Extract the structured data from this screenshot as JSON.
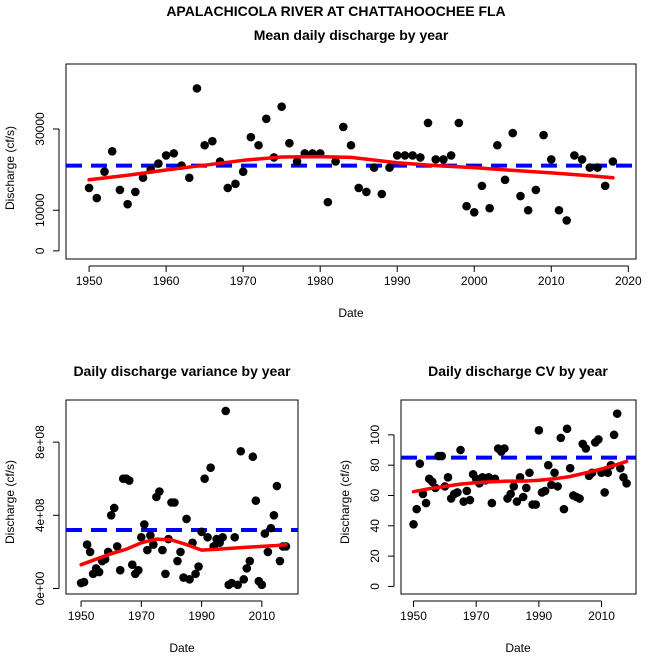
{
  "page_title": "APALACHICOLA RIVER AT CHATTAHOOCHEE FLA",
  "chart_data": [
    {
      "id": "mean",
      "type": "scatter",
      "title": "Mean daily discharge by year",
      "xlabel": "Date",
      "ylabel": "Discharge (cf/s)",
      "xlim": [
        1947,
        2021
      ],
      "ylim": [
        -2000,
        46000
      ],
      "xticks": [
        1950,
        1960,
        1970,
        1980,
        1990,
        2000,
        2010,
        2020
      ],
      "yticks": [
        0,
        10000,
        30000
      ],
      "ytick_labels": [
        "0",
        "10000",
        "30000"
      ],
      "x": [
        1950,
        1951,
        1952,
        1953,
        1954,
        1955,
        1956,
        1957,
        1958,
        1959,
        1960,
        1961,
        1962,
        1963,
        1964,
        1965,
        1966,
        1967,
        1968,
        1969,
        1970,
        1971,
        1972,
        1973,
        1974,
        1975,
        1976,
        1977,
        1978,
        1979,
        1980,
        1981,
        1982,
        1983,
        1984,
        1985,
        1986,
        1987,
        1988,
        1989,
        1990,
        1991,
        1992,
        1993,
        1994,
        1995,
        1996,
        1997,
        1998,
        1999,
        2000,
        2001,
        2002,
        2003,
        2004,
        2005,
        2006,
        2007,
        2008,
        2009,
        2010,
        2011,
        2012,
        2013,
        2014,
        2015,
        2016,
        2017,
        2018
      ],
      "y": [
        15500,
        13000,
        19500,
        24500,
        15000,
        11500,
        14500,
        18000,
        20000,
        21500,
        23500,
        24000,
        21000,
        18000,
        40000,
        26000,
        27000,
        22000,
        15500,
        16500,
        19500,
        28000,
        26000,
        32500,
        23000,
        35500,
        26500,
        22000,
        24000,
        24000,
        24000,
        12000,
        22000,
        30500,
        26000,
        15500,
        14500,
        20500,
        14000,
        20500,
        23500,
        23500,
        23500,
        23000,
        31500,
        22500,
        22500,
        23500,
        31500,
        11000,
        9500,
        16000,
        10500,
        26000,
        17500,
        29000,
        13500,
        10000,
        15000,
        28500,
        22500,
        10000,
        7500,
        23500,
        22500,
        20500,
        20500,
        16000,
        22000
      ],
      "trend": {
        "x": [
          1950,
          1955,
          1960,
          1965,
          1970,
          1975,
          1980,
          1984,
          1990,
          1995,
          2000,
          2005,
          2010,
          2015,
          2018
        ],
        "y": [
          17500,
          18600,
          19900,
          21100,
          22300,
          23100,
          23200,
          23000,
          21700,
          21000,
          20500,
          19800,
          19200,
          18500,
          18000
        ]
      },
      "reference": 21000,
      "colors": {
        "points": "#000000",
        "trend": "#ff0000",
        "reference": "#0000ff"
      }
    },
    {
      "id": "variance",
      "type": "scatter",
      "title": "Daily discharge variance by year",
      "xlabel": "Date",
      "ylabel": "Discharge (cf/s)",
      "xlim": [
        1945,
        2022
      ],
      "ylim": [
        -30000000.0,
        1030000000.0
      ],
      "xticks": [
        1950,
        1970,
        1990,
        2010
      ],
      "yticks": [
        0,
        400000000,
        800000000
      ],
      "ytick_labels": [
        "0e+00",
        "4e+08",
        "8e+08"
      ],
      "x": [
        1950,
        1951,
        1952,
        1953,
        1954,
        1955,
        1956,
        1957,
        1958,
        1959,
        1960,
        1961,
        1962,
        1963,
        1964,
        1965,
        1966,
        1967,
        1968,
        1969,
        1970,
        1971,
        1972,
        1973,
        1974,
        1975,
        1976,
        1977,
        1978,
        1979,
        1980,
        1981,
        1982,
        1983,
        1984,
        1985,
        1986,
        1987,
        1988,
        1989,
        1990,
        1991,
        1992,
        1993,
        1994,
        1995,
        1996,
        1997,
        1998,
        1999,
        2000,
        2001,
        2002,
        2003,
        2004,
        2005,
        2006,
        2007,
        2008,
        2009,
        2010,
        2011,
        2012,
        2013,
        2014,
        2015,
        2016,
        2017,
        2018
      ],
      "y": [
        30000000,
        35000000,
        240000000,
        200000000,
        80000000,
        110000000,
        90000000,
        150000000,
        160000000,
        200000000,
        400000000,
        440000000,
        230000000,
        100000000,
        600000000,
        600000000,
        590000000,
        130000000,
        80000000,
        100000000,
        280000000,
        350000000,
        210000000,
        290000000,
        240000000,
        500000000,
        530000000,
        210000000,
        80000000,
        270000000,
        470000000,
        470000000,
        150000000,
        200000000,
        60000000,
        380000000,
        50000000,
        250000000,
        80000000,
        120000000,
        310000000,
        600000000,
        280000000,
        660000000,
        230000000,
        270000000,
        250000000,
        280000000,
        970000000,
        20000000,
        30000000,
        280000000,
        20000000,
        750000000,
        50000000,
        110000000,
        150000000,
        720000000,
        480000000,
        40000000,
        20000000,
        300000000,
        200000000,
        330000000,
        400000000,
        560000000,
        150000000,
        230000000,
        230000000
      ],
      "trend": {
        "x": [
          1950,
          1955,
          1960,
          1965,
          1970,
          1975,
          1980,
          1985,
          1990,
          1995,
          2000,
          2005,
          2010,
          2015,
          2018
        ],
        "y": [
          130000000,
          160000000,
          190000000,
          215000000,
          250000000,
          270000000,
          265000000,
          240000000,
          210000000,
          215000000,
          220000000,
          225000000,
          230000000,
          235000000,
          240000000
        ]
      },
      "reference": 320000000,
      "colors": {
        "points": "#000000",
        "trend": "#ff0000",
        "reference": "#0000ff"
      }
    },
    {
      "id": "cv",
      "type": "scatter",
      "title": "Daily discharge CV by year",
      "xlabel": "Date",
      "ylabel": "Discharge (cf/s)",
      "xlim": [
        1946,
        2021
      ],
      "ylim": [
        -5,
        123
      ],
      "xticks": [
        1950,
        1970,
        1990,
        2010
      ],
      "yticks": [
        0,
        20,
        40,
        60,
        80,
        100
      ],
      "ytick_labels": [
        "0",
        "20",
        "40",
        "60",
        "80",
        "100"
      ],
      "x": [
        1950,
        1951,
        1952,
        1953,
        1954,
        1955,
        1956,
        1957,
        1958,
        1959,
        1960,
        1961,
        1962,
        1963,
        1964,
        1965,
        1966,
        1967,
        1968,
        1969,
        1970,
        1971,
        1972,
        1973,
        1974,
        1975,
        1976,
        1977,
        1978,
        1979,
        1980,
        1981,
        1982,
        1983,
        1984,
        1985,
        1986,
        1987,
        1988,
        1989,
        1990,
        1991,
        1992,
        1993,
        1994,
        1995,
        1996,
        1997,
        1998,
        1999,
        2000,
        2001,
        2002,
        2003,
        2004,
        2005,
        2006,
        2007,
        2008,
        2009,
        2010,
        2011,
        2012,
        2013,
        2014,
        2015,
        2016,
        2017,
        2018
      ],
      "y": [
        41,
        51,
        81,
        61,
        55,
        71,
        69,
        65,
        86,
        86,
        66,
        72,
        58,
        61,
        62,
        90,
        56,
        63,
        57,
        74,
        71,
        68,
        72,
        70,
        72,
        55,
        71,
        91,
        89,
        91,
        58,
        61,
        66,
        56,
        72,
        59,
        65,
        75,
        54,
        54,
        103,
        62,
        63,
        80,
        67,
        75,
        66,
        98,
        51,
        104,
        78,
        60,
        59,
        58,
        94,
        91,
        73,
        75,
        95,
        97,
        75,
        62,
        75,
        80,
        100,
        114,
        78,
        72,
        68
      ],
      "trend": {
        "x": [
          1950,
          1955,
          1960,
          1965,
          1970,
          1975,
          1980,
          1985,
          1990,
          1995,
          2000,
          2005,
          2010,
          2015,
          2018
        ],
        "y": [
          62.5,
          64.5,
          66,
          67.5,
          68.5,
          69,
          69.5,
          69.5,
          70,
          71,
          72.5,
          75,
          77.5,
          80.5,
          82.5
        ]
      },
      "reference": 85,
      "colors": {
        "points": "#000000",
        "trend": "#ff0000",
        "reference": "#0000ff"
      }
    }
  ]
}
